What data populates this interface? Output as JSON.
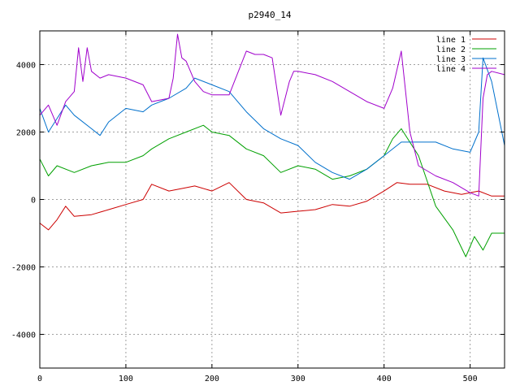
{
  "chart_data": {
    "type": "line",
    "title": "p2940_14",
    "xlabel": "",
    "ylabel": "",
    "xlim": [
      0,
      540
    ],
    "ylim": [
      -5000,
      5000
    ],
    "xticks": [
      0,
      100,
      200,
      300,
      400,
      500
    ],
    "yticks": [
      -4000,
      -2000,
      0,
      2000,
      4000
    ],
    "grid": true,
    "legend_position": "top-right",
    "series": [
      {
        "name": "line 1",
        "color": "#cc0000",
        "x": [
          0,
          10,
          20,
          30,
          40,
          60,
          80,
          100,
          120,
          130,
          150,
          170,
          180,
          200,
          220,
          240,
          260,
          280,
          300,
          320,
          340,
          360,
          380,
          400,
          415,
          430,
          450,
          470,
          490,
          510,
          525,
          540
        ],
        "values": [
          -700,
          -900,
          -600,
          -200,
          -500,
          -450,
          -300,
          -150,
          0,
          450,
          250,
          350,
          400,
          250,
          500,
          0,
          -100,
          -400,
          -350,
          -300,
          -150,
          -200,
          -50,
          250,
          500,
          450,
          450,
          250,
          150,
          250,
          100,
          100
        ]
      },
      {
        "name": "line 2",
        "color": "#00a000",
        "x": [
          0,
          10,
          20,
          40,
          60,
          80,
          100,
          120,
          130,
          150,
          170,
          190,
          200,
          220,
          240,
          260,
          280,
          300,
          320,
          340,
          360,
          380,
          400,
          410,
          420,
          440,
          460,
          480,
          495,
          505,
          515,
          525,
          540
        ],
        "values": [
          1200,
          700,
          1000,
          800,
          1000,
          1100,
          1100,
          1300,
          1500,
          1800,
          2000,
          2200,
          2000,
          1900,
          1500,
          1300,
          800,
          1000,
          900,
          600,
          700,
          900,
          1300,
          1800,
          2100,
          1300,
          -200,
          -900,
          -1700,
          -1100,
          -1500,
          -1000,
          -1000
        ]
      },
      {
        "name": "line 3",
        "color": "#0070cc",
        "x": [
          0,
          10,
          20,
          30,
          40,
          60,
          70,
          80,
          100,
          120,
          130,
          150,
          170,
          180,
          200,
          220,
          240,
          260,
          280,
          300,
          320,
          340,
          360,
          380,
          400,
          420,
          440,
          460,
          480,
          500,
          510,
          515,
          525,
          540
        ],
        "values": [
          2700,
          2000,
          2400,
          2800,
          2500,
          2100,
          1900,
          2300,
          2700,
          2600,
          2800,
          3000,
          3300,
          3600,
          3400,
          3200,
          2600,
          2100,
          1800,
          1600,
          1100,
          800,
          600,
          900,
          1300,
          1700,
          1700,
          1700,
          1500,
          1400,
          2000,
          4200,
          3500,
          1600
        ]
      },
      {
        "name": "line 4",
        "color": "#a000cc",
        "x": [
          0,
          10,
          20,
          30,
          40,
          45,
          50,
          55,
          60,
          70,
          80,
          100,
          120,
          130,
          150,
          155,
          160,
          165,
          170,
          180,
          190,
          200,
          220,
          240,
          250,
          260,
          270,
          280,
          290,
          295,
          300,
          320,
          340,
          360,
          380,
          400,
          410,
          420,
          430,
          440,
          460,
          480,
          500,
          510,
          515,
          520,
          525,
          540
        ],
        "values": [
          2500,
          2800,
          2200,
          2900,
          3200,
          4500,
          3500,
          4500,
          3800,
          3600,
          3700,
          3600,
          3400,
          2900,
          3000,
          3600,
          4900,
          4200,
          4100,
          3500,
          3200,
          3100,
          3100,
          4400,
          4300,
          4300,
          4200,
          2500,
          3500,
          3800,
          3800,
          3700,
          3500,
          3200,
          2900,
          2700,
          3300,
          4400,
          2000,
          1000,
          700,
          500,
          200,
          100,
          3000,
          3700,
          3800,
          3700
        ]
      }
    ]
  }
}
